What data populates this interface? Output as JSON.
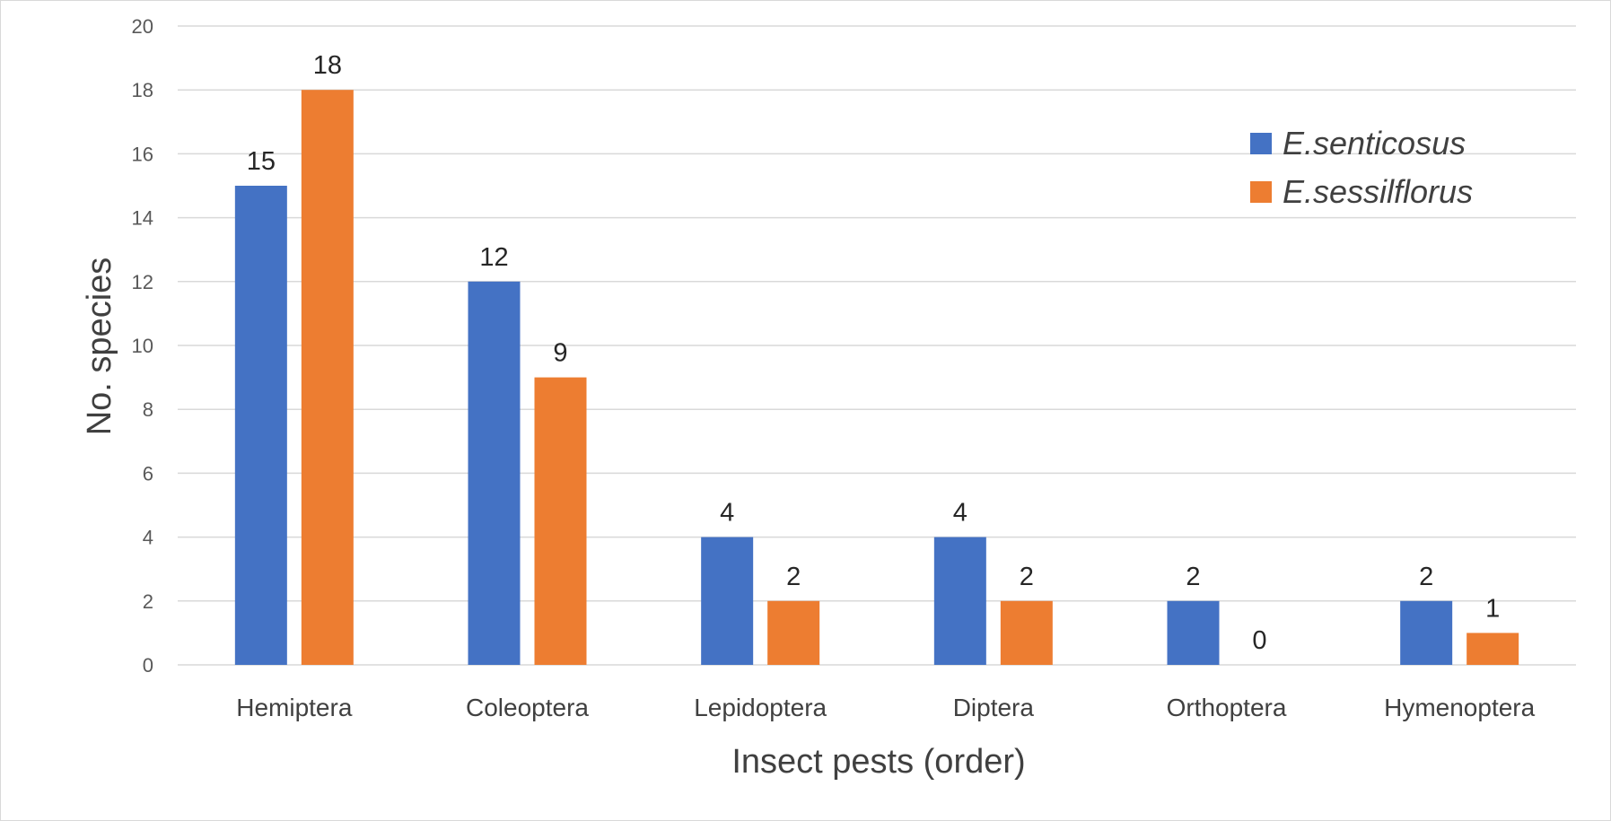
{
  "chart_data": {
    "type": "bar",
    "title": "",
    "xlabel": "Insect pests (order)",
    "ylabel": "No. species",
    "categories": [
      "Hemiptera",
      "Coleoptera",
      "Lepidoptera",
      "Diptera",
      "Orthoptera",
      "Hymenoptera"
    ],
    "series": [
      {
        "name": "E.senticosus",
        "color": "#4472C4",
        "values": [
          15,
          12,
          4,
          4,
          2,
          2
        ]
      },
      {
        "name": "E.sessilflorus",
        "color": "#ED7D31",
        "values": [
          18,
          9,
          2,
          2,
          0,
          1
        ]
      }
    ],
    "ylim": [
      0,
      20
    ],
    "yticks": [
      0,
      2,
      4,
      6,
      8,
      10,
      12,
      14,
      16,
      18,
      20
    ],
    "grid": true,
    "legend_position": "top-right",
    "data_labels": true
  }
}
